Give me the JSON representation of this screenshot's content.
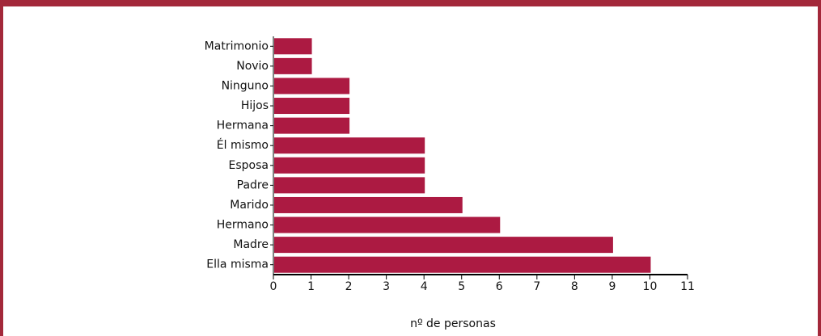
{
  "chart_data": {
    "type": "bar",
    "orientation": "horizontal",
    "x_label": "nº de personas",
    "categories": [
      "Matrimonio",
      "Novio",
      "Ninguno",
      "Hijos",
      "Hermana",
      "Él mismo",
      "Esposa",
      "Padre",
      "Marido",
      "Hermano",
      "Madre",
      "Ella misma"
    ],
    "values": [
      1,
      1,
      2,
      2,
      2,
      4,
      4,
      4,
      5,
      6,
      9,
      10
    ],
    "color": "#ac1a42",
    "xlim": [
      0,
      11
    ],
    "xticks": [
      0,
      1,
      2,
      3,
      4,
      5,
      6,
      7,
      8,
      9,
      10,
      11
    ]
  }
}
